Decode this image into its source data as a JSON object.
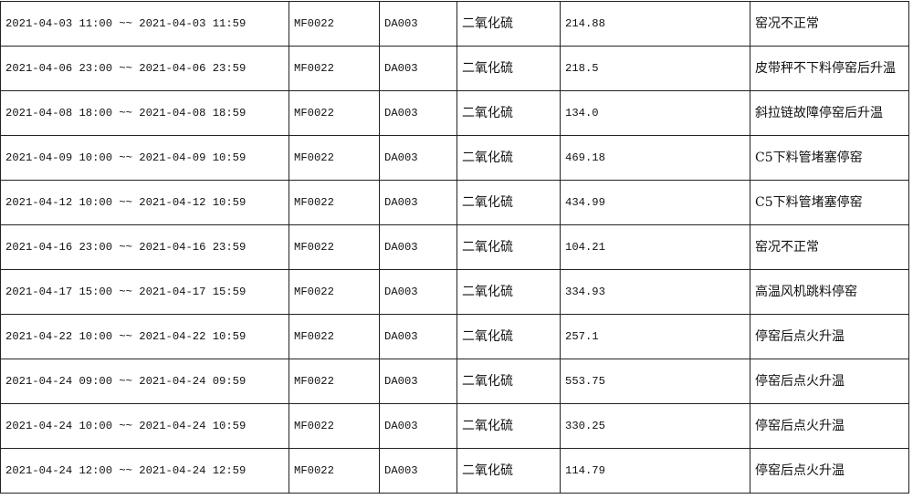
{
  "rows": [
    {
      "period": "2021-04-03 11:00 ~~ 2021-04-03 11:59",
      "code": "MF0022",
      "device": "DA003",
      "pollutant": "二氧化硫",
      "value": "214.88",
      "reason": "窑况不正常"
    },
    {
      "period": "2021-04-06 23:00 ~~ 2021-04-06 23:59",
      "code": "MF0022",
      "device": "DA003",
      "pollutant": "二氧化硫",
      "value": "218.5",
      "reason": "皮带秤不下料停窑后升温"
    },
    {
      "period": "2021-04-08 18:00 ~~ 2021-04-08 18:59",
      "code": "MF0022",
      "device": "DA003",
      "pollutant": "二氧化硫",
      "value": "134.0",
      "reason": "斜拉链故障停窑后升温"
    },
    {
      "period": "2021-04-09 10:00 ~~ 2021-04-09 10:59",
      "code": "MF0022",
      "device": "DA003",
      "pollutant": "二氧化硫",
      "value": "469.18",
      "reason": "C5下料管堵塞停窑"
    },
    {
      "period": "2021-04-12 10:00 ~~ 2021-04-12 10:59",
      "code": "MF0022",
      "device": "DA003",
      "pollutant": "二氧化硫",
      "value": "434.99",
      "reason": "C5下料管堵塞停窑"
    },
    {
      "period": "2021-04-16 23:00 ~~ 2021-04-16 23:59",
      "code": "MF0022",
      "device": "DA003",
      "pollutant": "二氧化硫",
      "value": "104.21",
      "reason": "窑况不正常"
    },
    {
      "period": "2021-04-17 15:00 ~~ 2021-04-17 15:59",
      "code": "MF0022",
      "device": "DA003",
      "pollutant": "二氧化硫",
      "value": "334.93",
      "reason": "高温风机跳料停窑"
    },
    {
      "period": "2021-04-22 10:00 ~~ 2021-04-22 10:59",
      "code": "MF0022",
      "device": "DA003",
      "pollutant": "二氧化硫",
      "value": "257.1",
      "reason": "停窑后点火升温"
    },
    {
      "period": "2021-04-24 09:00 ~~ 2021-04-24 09:59",
      "code": "MF0022",
      "device": "DA003",
      "pollutant": "二氧化硫",
      "value": "553.75",
      "reason": "停窑后点火升温"
    },
    {
      "period": "2021-04-24 10:00 ~~ 2021-04-24 10:59",
      "code": "MF0022",
      "device": "DA003",
      "pollutant": "二氧化硫",
      "value": "330.25",
      "reason": "停窑后点火升温"
    },
    {
      "period": "2021-04-24 12:00 ~~ 2021-04-24 12:59",
      "code": "MF0022",
      "device": "DA003",
      "pollutant": "二氧化硫",
      "value": "114.79",
      "reason": "停窑后点火升温"
    }
  ]
}
